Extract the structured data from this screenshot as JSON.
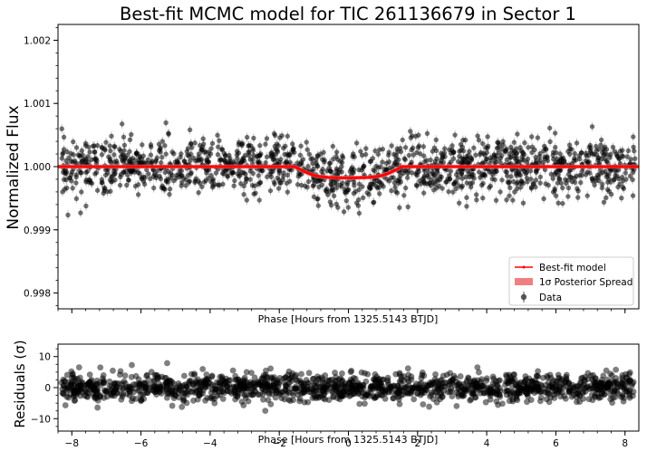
{
  "chart_data": [
    {
      "type": "scatter",
      "title": "Best-fit MCMC model for TIC 261136679 in Sector 1",
      "xlabel": "Phase [Hours from 1325.5143 BTJD]",
      "ylabel": "Normalized Flux",
      "xlim": [
        -8.4,
        8.4
      ],
      "ylim": [
        0.99775,
        1.00225
      ],
      "yticks": [
        0.998,
        0.999,
        1.0,
        1.001,
        1.002
      ],
      "ytick_labels": [
        "0.998",
        "0.999",
        "1.000",
        "1.001",
        "1.002"
      ],
      "grid": false,
      "legend_position": "lower-right",
      "legend": [
        "Best-fit model",
        "1σ Posterior Spread",
        "Data"
      ],
      "model": {
        "name": "Best-fit model",
        "color": "#ff0000",
        "x": [
          -8.4,
          -1.55,
          -1.45,
          -1.3,
          -1.1,
          -0.9,
          -0.6,
          0,
          0.6,
          0.9,
          1.1,
          1.3,
          1.45,
          1.55,
          8.4
        ],
        "y": [
          1.0,
          1.0,
          0.99997,
          0.99993,
          0.99988,
          0.99985,
          0.99983,
          0.99982,
          0.99983,
          0.99985,
          0.99988,
          0.99993,
          0.99997,
          1.0,
          1.0
        ]
      },
      "posterior_spread": {
        "name": "1σ Posterior Spread",
        "color": "#f08080"
      },
      "data": {
        "name": "Data",
        "color": "#000000",
        "x_range": [
          -8.3,
          8.3
        ],
        "baseline": 1.0,
        "scatter_sigma": 0.00022,
        "n_points": 1500
      }
    },
    {
      "type": "scatter",
      "xlabel": "Phase [Hours from 1325.5143 BTJD]",
      "ylabel": "Residuals (σ)",
      "xlim": [
        -8.4,
        8.4
      ],
      "ylim": [
        -14,
        14
      ],
      "xticks": [
        -8,
        -6,
        -4,
        -2,
        0,
        2,
        4,
        6,
        8
      ],
      "xtick_labels": [
        "−8",
        "−6",
        "−4",
        "−2",
        "0",
        "2",
        "4",
        "6",
        "8"
      ],
      "yticks": [
        -10,
        0,
        10
      ],
      "ytick_labels": [
        "−10",
        "0",
        "10"
      ],
      "data": {
        "color": "#000000",
        "sigma": 2.2,
        "n_points": 1500
      }
    }
  ]
}
